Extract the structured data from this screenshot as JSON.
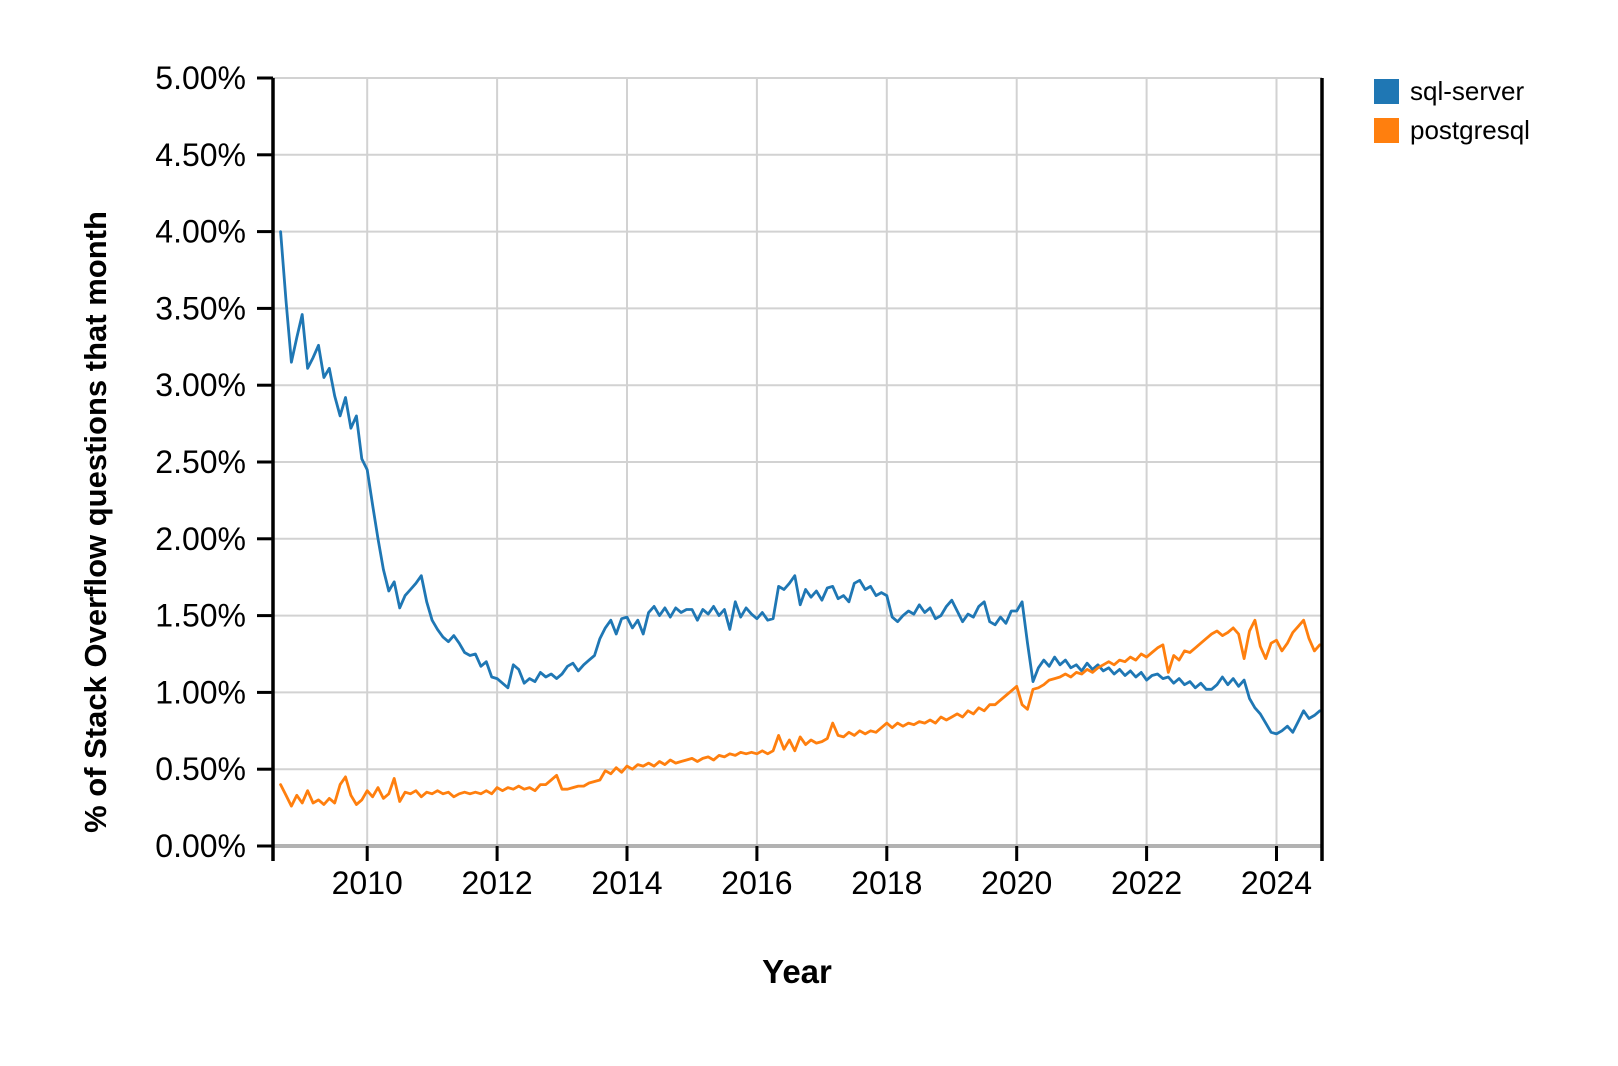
{
  "page": {
    "background": "#ffffff"
  },
  "legend": {
    "position": "top-right",
    "items": [
      {
        "label": "sql-server",
        "color": "#1f77b4"
      },
      {
        "label": "postgresql",
        "color": "#ff7f0e"
      }
    ]
  },
  "chart_data": {
    "type": "line",
    "xlabel": "Year",
    "ylabel": "% of Stack Overflow questions that month",
    "xlim": [
      2008.55,
      2024.7
    ],
    "ylim": [
      0,
      5
    ],
    "grid": true,
    "grid_color": "#d2d2d2",
    "axis_color": "#000000",
    "baseline_color": "#b2b2b2",
    "legend_position": "top-right",
    "x_ticks": [
      2010,
      2012,
      2014,
      2016,
      2018,
      2020,
      2022,
      2024
    ],
    "y_tick_values": [
      0,
      0.5,
      1,
      1.5,
      2,
      2.5,
      3,
      3.5,
      4,
      4.5,
      5
    ],
    "y_ticks": [
      "0.00%",
      "0.50%",
      "1.00%",
      "1.50%",
      "2.00%",
      "2.50%",
      "3.00%",
      "3.50%",
      "4.00%",
      "4.50%",
      "5.00%"
    ],
    "unit": "% of Stack Overflow questions that month",
    "series": [
      {
        "name": "sql-server",
        "color": "#1f77b4",
        "start_year": 2008,
        "start_month": 9,
        "monthly_percent": [
          4.0,
          3.55,
          3.15,
          3.31,
          3.46,
          3.11,
          3.18,
          3.26,
          3.05,
          3.11,
          2.93,
          2.8,
          2.92,
          2.72,
          2.8,
          2.52,
          2.45,
          2.22,
          2.0,
          1.8,
          1.66,
          1.72,
          1.55,
          1.63,
          1.67,
          1.71,
          1.76,
          1.59,
          1.47,
          1.41,
          1.36,
          1.33,
          1.37,
          1.32,
          1.26,
          1.24,
          1.25,
          1.17,
          1.2,
          1.1,
          1.09,
          1.06,
          1.03,
          1.18,
          1.15,
          1.06,
          1.09,
          1.07,
          1.13,
          1.1,
          1.12,
          1.09,
          1.12,
          1.17,
          1.19,
          1.14,
          1.18,
          1.21,
          1.24,
          1.35,
          1.42,
          1.47,
          1.38,
          1.48,
          1.49,
          1.42,
          1.47,
          1.38,
          1.52,
          1.56,
          1.5,
          1.55,
          1.49,
          1.55,
          1.52,
          1.54,
          1.54,
          1.47,
          1.54,
          1.51,
          1.56,
          1.5,
          1.54,
          1.41,
          1.59,
          1.49,
          1.55,
          1.51,
          1.48,
          1.52,
          1.47,
          1.48,
          1.69,
          1.67,
          1.71,
          1.76,
          1.57,
          1.67,
          1.62,
          1.66,
          1.6,
          1.68,
          1.69,
          1.61,
          1.63,
          1.59,
          1.71,
          1.73,
          1.67,
          1.69,
          1.63,
          1.65,
          1.63,
          1.49,
          1.46,
          1.5,
          1.53,
          1.51,
          1.57,
          1.52,
          1.55,
          1.48,
          1.5,
          1.56,
          1.6,
          1.53,
          1.46,
          1.51,
          1.49,
          1.56,
          1.59,
          1.46,
          1.44,
          1.49,
          1.45,
          1.53,
          1.53,
          1.59,
          1.32,
          1.07,
          1.16,
          1.21,
          1.17,
          1.23,
          1.18,
          1.21,
          1.16,
          1.18,
          1.14,
          1.19,
          1.15,
          1.18,
          1.14,
          1.16,
          1.12,
          1.15,
          1.11,
          1.14,
          1.1,
          1.13,
          1.08,
          1.11,
          1.12,
          1.09,
          1.1,
          1.06,
          1.09,
          1.05,
          1.07,
          1.03,
          1.06,
          1.02,
          1.02,
          1.05,
          1.1,
          1.05,
          1.09,
          1.04,
          1.08,
          0.96,
          0.9,
          0.86,
          0.8,
          0.74,
          0.73,
          0.75,
          0.78,
          0.74,
          0.81,
          0.88,
          0.83,
          0.85,
          0.88
        ]
      },
      {
        "name": "postgresql",
        "color": "#ff7f0e",
        "start_year": 2008,
        "start_month": 9,
        "monthly_percent": [
          0.4,
          0.33,
          0.26,
          0.33,
          0.28,
          0.36,
          0.28,
          0.3,
          0.27,
          0.31,
          0.28,
          0.4,
          0.45,
          0.33,
          0.27,
          0.3,
          0.36,
          0.32,
          0.38,
          0.31,
          0.34,
          0.44,
          0.29,
          0.35,
          0.34,
          0.36,
          0.32,
          0.35,
          0.34,
          0.36,
          0.34,
          0.35,
          0.32,
          0.34,
          0.35,
          0.34,
          0.35,
          0.34,
          0.36,
          0.34,
          0.38,
          0.36,
          0.38,
          0.37,
          0.39,
          0.37,
          0.38,
          0.36,
          0.4,
          0.4,
          0.43,
          0.46,
          0.37,
          0.37,
          0.38,
          0.39,
          0.39,
          0.41,
          0.42,
          0.43,
          0.49,
          0.47,
          0.51,
          0.48,
          0.52,
          0.5,
          0.53,
          0.52,
          0.54,
          0.52,
          0.55,
          0.53,
          0.56,
          0.54,
          0.55,
          0.56,
          0.57,
          0.55,
          0.57,
          0.58,
          0.56,
          0.59,
          0.58,
          0.6,
          0.59,
          0.61,
          0.6,
          0.61,
          0.6,
          0.62,
          0.6,
          0.62,
          0.72,
          0.63,
          0.69,
          0.62,
          0.71,
          0.66,
          0.69,
          0.67,
          0.68,
          0.7,
          0.8,
          0.72,
          0.71,
          0.74,
          0.72,
          0.75,
          0.73,
          0.75,
          0.74,
          0.77,
          0.8,
          0.77,
          0.8,
          0.78,
          0.8,
          0.79,
          0.81,
          0.8,
          0.82,
          0.8,
          0.84,
          0.82,
          0.84,
          0.86,
          0.84,
          0.88,
          0.86,
          0.9,
          0.88,
          0.92,
          0.92,
          0.95,
          0.98,
          1.01,
          1.04,
          0.92,
          0.89,
          1.02,
          1.03,
          1.05,
          1.08,
          1.09,
          1.1,
          1.12,
          1.1,
          1.13,
          1.12,
          1.15,
          1.13,
          1.16,
          1.18,
          1.2,
          1.18,
          1.21,
          1.2,
          1.23,
          1.21,
          1.25,
          1.23,
          1.26,
          1.29,
          1.31,
          1.13,
          1.24,
          1.21,
          1.27,
          1.26,
          1.29,
          1.32,
          1.35,
          1.38,
          1.4,
          1.37,
          1.39,
          1.42,
          1.38,
          1.22,
          1.4,
          1.47,
          1.3,
          1.22,
          1.32,
          1.34,
          1.27,
          1.32,
          1.39,
          1.43,
          1.47,
          1.35,
          1.27,
          1.31
        ]
      }
    ]
  }
}
